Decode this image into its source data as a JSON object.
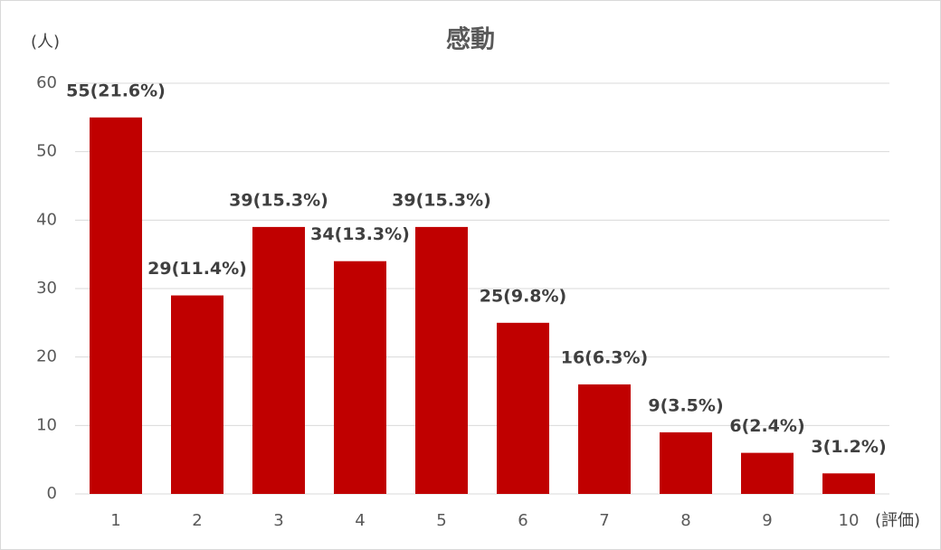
{
  "chart_data": {
    "type": "bar",
    "title": "感動",
    "y_label": "(人)",
    "x_label": "(評価)",
    "categories": [
      "1",
      "2",
      "3",
      "4",
      "5",
      "6",
      "7",
      "8",
      "9",
      "10"
    ],
    "values": [
      55,
      29,
      39,
      34,
      39,
      25,
      16,
      9,
      6,
      3
    ],
    "value_labels": [
      "55(21.6%)",
      "29(11.4%)",
      "39(15.3%)",
      "34(13.3%)",
      "39(15.3%)",
      "25(9.8%)",
      "16(6.3%)",
      "9(3.5%)",
      "6(2.4%)",
      "3(1.2%)"
    ],
    "color": "#c00000",
    "ylim": [
      0,
      60
    ],
    "yticks": [
      0,
      10,
      20,
      30,
      40,
      50,
      60
    ],
    "grid": true
  }
}
